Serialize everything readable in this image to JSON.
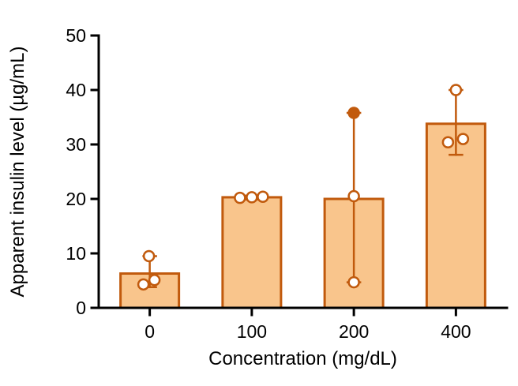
{
  "figure": {
    "background": "#ffffff"
  },
  "chart_data": {
    "type": "bar",
    "title": "",
    "xlabel": "Concentration (mg/dL)",
    "ylabel": "Apparent insulin level (µg/mL)",
    "categories": [
      "0",
      "100",
      "200",
      "400"
    ],
    "values": [
      6.3,
      20.3,
      20.0,
      33.8
    ],
    "errors": [
      {
        "low": 3.8,
        "high": 9.5
      },
      {
        "low": 19.9,
        "high": 20.6
      },
      {
        "low": 4.7,
        "high": 35.8
      },
      {
        "low": 28.1,
        "high": 40.0
      }
    ],
    "points": [
      [
        {
          "dx": -8,
          "v": 4.3,
          "solid": false
        },
        {
          "dx": 6,
          "v": 5.1,
          "solid": false
        },
        {
          "dx": -1,
          "v": 9.5,
          "solid": false
        }
      ],
      [
        {
          "dx": -15,
          "v": 20.2,
          "solid": false
        },
        {
          "dx": 0,
          "v": 20.3,
          "solid": false
        },
        {
          "dx": 14,
          "v": 20.4,
          "solid": false
        }
      ],
      [
        {
          "dx": 0,
          "v": 4.7,
          "solid": false
        },
        {
          "dx": 0,
          "v": 20.5,
          "solid": false
        },
        {
          "dx": 0,
          "v": 35.8,
          "solid": true
        }
      ],
      [
        {
          "dx": -10,
          "v": 30.4,
          "solid": false
        },
        {
          "dx": 9,
          "v": 31.0,
          "solid": false
        },
        {
          "dx": 0,
          "v": 40.0,
          "solid": false
        }
      ]
    ],
    "ylim": [
      0,
      50
    ],
    "yticks": [
      0,
      10,
      20,
      30,
      40,
      50
    ],
    "grid": false,
    "legend_position": "none",
    "colors": {
      "bar_fill": "#F9C58C",
      "bar_stroke": "#C15A0D",
      "error_stroke": "#C15A0D",
      "point_fill": "#FFFFFF",
      "point_stroke": "#C15A0D",
      "axis": "#000000",
      "text": "#000000"
    }
  }
}
